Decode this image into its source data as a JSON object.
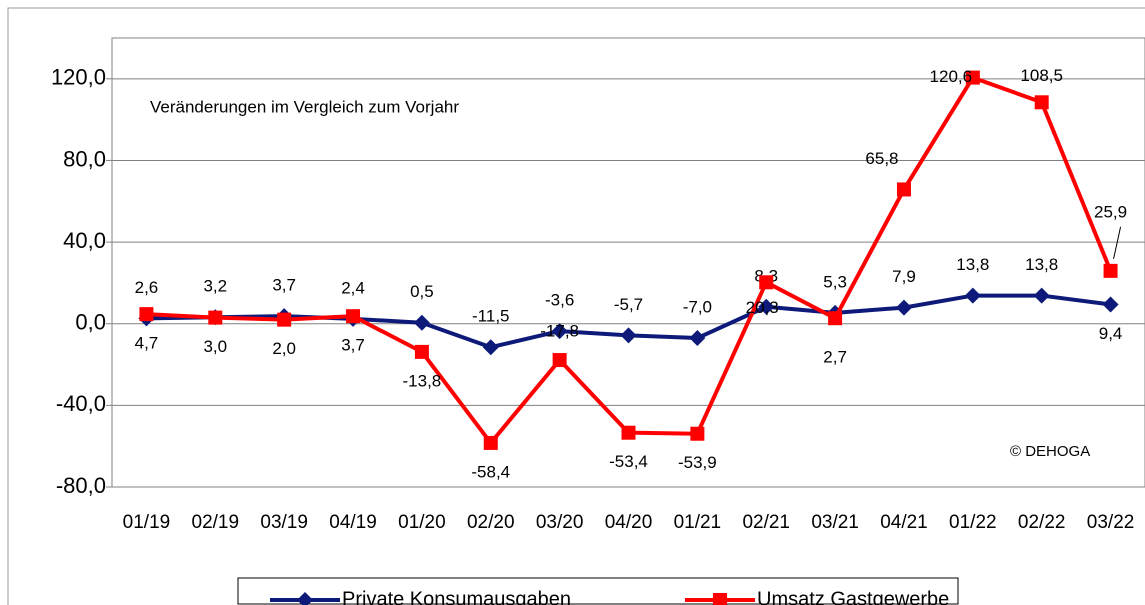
{
  "chart_data": {
    "type": "line",
    "annotations": [
      "Veränderungen im Vergleich zum Vorjahr",
      "© DEHOGA"
    ],
    "categories": [
      "01/19",
      "02/19",
      "03/19",
      "04/19",
      "01/20",
      "02/20",
      "03/20",
      "04/20",
      "01/21",
      "02/21",
      "03/21",
      "04/21",
      "01/22",
      "02/22",
      "03/22"
    ],
    "series": [
      {
        "name": "Private Konsumausgaben",
        "color": "#0d1a7a",
        "marker": "diamond",
        "values": [
          2.6,
          3.2,
          3.7,
          2.4,
          0.5,
          -11.5,
          -3.6,
          -5.7,
          -7.0,
          8.3,
          5.3,
          7.9,
          13.8,
          13.8,
          9.4
        ],
        "value_labels": [
          "2,6",
          "3,2",
          "3,7",
          "2,4",
          "0,5",
          "-11,5",
          "-3,6",
          "-5,7",
          "-7,0",
          "8,3",
          "5,3",
          "7,9",
          "13,8",
          "13,8",
          "9,4"
        ]
      },
      {
        "name": "Umsatz Gastgewerbe",
        "color": "#ff0000",
        "marker": "square",
        "values": [
          4.7,
          3.0,
          2.0,
          3.7,
          -13.8,
          -58.4,
          -17.8,
          -53.4,
          -53.9,
          20.3,
          2.7,
          65.8,
          120.6,
          108.5,
          25.9
        ],
        "value_labels": [
          "4,7",
          "3,0",
          "2,0",
          "3,7",
          "-13,8",
          "-58,4",
          "-17,8",
          "-53,4",
          "-53,9",
          "20,3",
          "2,7",
          "65,8",
          "120,6",
          "108,5",
          "25,9"
        ]
      }
    ],
    "ylim": [
      -80,
      140
    ],
    "yticks": [
      {
        "value": -80,
        "label": "-80,0"
      },
      {
        "value": -40,
        "label": "-40,0"
      },
      {
        "value": 0,
        "label": "0,0"
      },
      {
        "value": 40,
        "label": "40,0"
      },
      {
        "value": 80,
        "label": "80,0"
      },
      {
        "value": 120,
        "label": "120,0"
      }
    ],
    "grid": true,
    "legend": "bottom"
  }
}
